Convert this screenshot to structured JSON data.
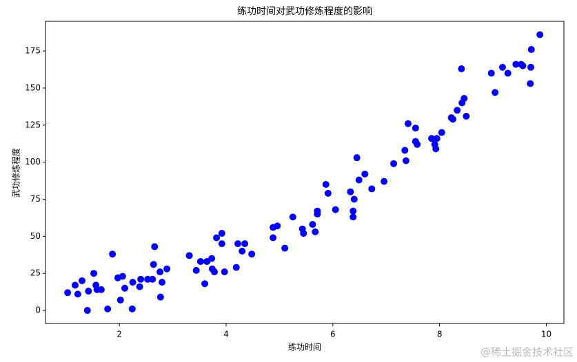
{
  "chart_data": {
    "type": "scatter",
    "title": "练功时间对武功修炼程度的影响",
    "x_label": "练功时间",
    "y_label": "武功修炼程度",
    "watermark": "@稀土掘金技术社区",
    "color": "#0000ff",
    "x": [
      1.03,
      1.17,
      1.22,
      1.3,
      1.4,
      1.42,
      1.52,
      1.56,
      1.58,
      1.66,
      1.78,
      1.87,
      1.97,
      2.02,
      2.06,
      2.1,
      2.24,
      2.25,
      2.38,
      2.4,
      2.53,
      2.62,
      2.64,
      2.66,
      2.76,
      2.77,
      2.8,
      2.89,
      3.31,
      3.44,
      3.52,
      3.6,
      3.64,
      3.73,
      3.74,
      3.78,
      3.82,
      3.92,
      3.92,
      3.97,
      4.19,
      4.22,
      4.3,
      4.35,
      4.48,
      4.88,
      4.88,
      4.96,
      5.1,
      5.25,
      5.43,
      5.45,
      5.62,
      5.67,
      5.71,
      5.71,
      5.87,
      5.91,
      6.05,
      6.33,
      6.38,
      6.38,
      6.4,
      6.45,
      6.49,
      6.6,
      6.73,
      6.96,
      7.14,
      7.35,
      7.37,
      7.41,
      7.55,
      7.55,
      7.58,
      7.85,
      7.91,
      7.93,
      7.95,
      8.04,
      8.22,
      8.25,
      8.33,
      8.46,
      8.5,
      8.41,
      8.42,
      8.97,
      9.04,
      9.18,
      9.28,
      9.43,
      9.53,
      9.56,
      9.7,
      9.71,
      9.72,
      9.88
    ],
    "values": [
      12,
      17,
      11,
      20,
      0,
      13,
      25,
      17,
      14,
      14,
      1,
      38,
      22,
      7,
      23,
      15,
      1,
      19,
      16,
      21,
      21,
      21,
      31,
      43,
      26,
      9,
      19,
      28,
      37,
      27,
      33,
      18,
      33,
      35,
      28,
      26,
      49,
      52,
      45,
      26,
      29,
      45,
      40,
      45,
      38,
      56,
      49,
      57,
      42,
      63,
      55,
      52,
      58,
      53,
      67,
      65,
      85,
      79,
      68,
      80,
      67,
      63,
      75,
      103,
      88,
      92,
      82,
      87,
      99,
      108,
      101,
      126,
      123,
      114,
      112,
      116,
      112,
      109,
      116,
      120,
      130,
      129,
      135,
      143,
      131,
      163,
      140,
      160,
      147,
      164,
      160,
      166,
      166,
      165,
      153,
      164,
      176,
      186
    ],
    "xlim": [
      0.615,
      10.33
    ],
    "ylim": [
      -8.8,
      195
    ],
    "xticks": [
      2,
      4,
      6,
      8,
      10
    ],
    "yticks": [
      0,
      25,
      50,
      75,
      100,
      125,
      150,
      175
    ]
  }
}
